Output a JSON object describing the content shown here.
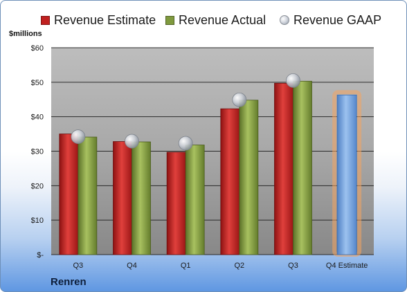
{
  "company": "Renren",
  "chart_data": {
    "type": "bar",
    "ylabel": "$millions",
    "ylim": [
      0,
      60
    ],
    "yticks": [
      {
        "value": 0,
        "label": "$-"
      },
      {
        "value": 10,
        "label": "$10"
      },
      {
        "value": 20,
        "label": "$20"
      },
      {
        "value": 30,
        "label": "$30"
      },
      {
        "value": 40,
        "label": "$40"
      },
      {
        "value": 50,
        "label": "$50"
      },
      {
        "value": 60,
        "label": "$60"
      }
    ],
    "categories": [
      "Q3",
      "Q4",
      "Q1",
      "Q2",
      "Q3",
      "Q4 Estimate"
    ],
    "legend_position": "top",
    "grid": true,
    "series": [
      {
        "name": "Revenue Estimate",
        "kind": "bar",
        "color": "#c0201f",
        "values": [
          35.0,
          32.8,
          29.7,
          42.3,
          49.7,
          null
        ]
      },
      {
        "name": "Revenue Actual",
        "kind": "bar",
        "color": "#7f9a3e",
        "values": [
          34.1,
          32.7,
          31.8,
          44.8,
          50.3,
          null
        ]
      },
      {
        "name": "Revenue GAAP",
        "kind": "marker",
        "color": "#b9bec6",
        "values": [
          34.2,
          32.9,
          32.3,
          44.9,
          50.5,
          null
        ]
      }
    ],
    "forecast": {
      "category": "Q4 Estimate",
      "value": 46.3,
      "color": "#6f9fd8",
      "glow": "#f4a460"
    }
  }
}
